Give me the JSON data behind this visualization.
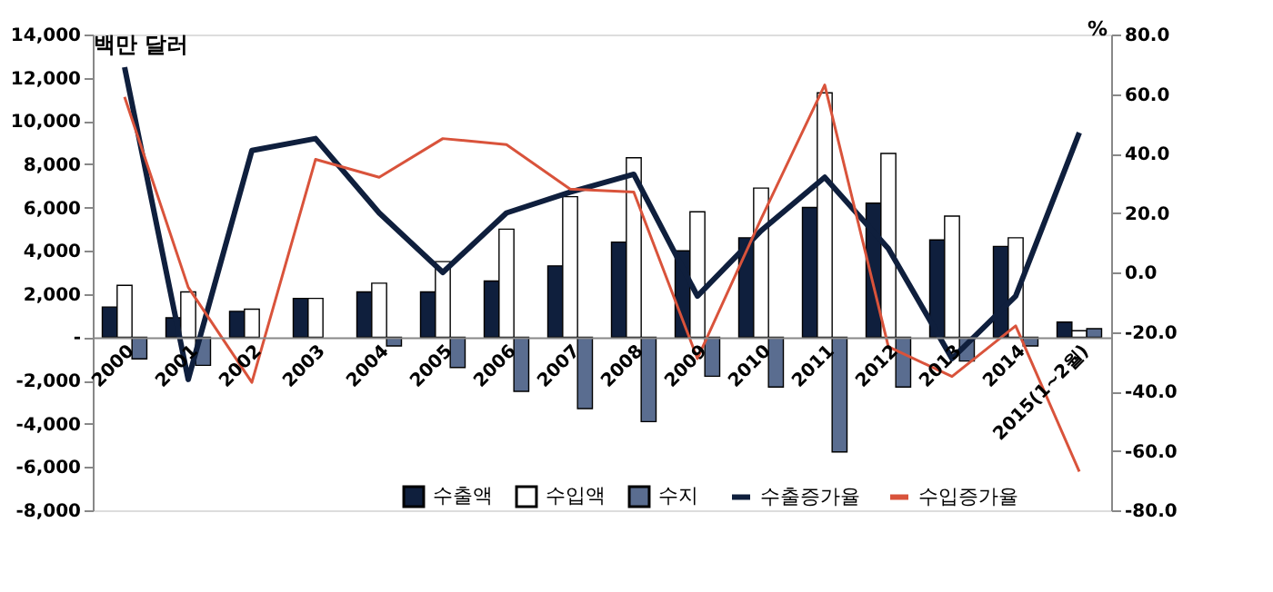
{
  "chart_data": {
    "type": "bar",
    "ylabel": "백만 달러",
    "y2label": "%",
    "categories": [
      "2000",
      "2001",
      "2002",
      "2003",
      "2004",
      "2005",
      "2006",
      "2007",
      "2008",
      "2009",
      "2010",
      "2011",
      "2012",
      "2013",
      "2014",
      "2015(1~2월)"
    ],
    "series": [
      {
        "name": "수출액",
        "color": "#0f1f3d",
        "values": [
          1400,
          900,
          1200,
          1800,
          2100,
          2100,
          2600,
          3300,
          4400,
          4000,
          4600,
          6000,
          6200,
          4500,
          4200,
          700
        ]
      },
      {
        "name": "수입액",
        "color": "#ffffff",
        "values": [
          2400,
          2100,
          1300,
          1800,
          2500,
          3500,
          5000,
          6500,
          8300,
          5800,
          6900,
          11300,
          8500,
          5600,
          4600,
          300
        ]
      },
      {
        "name": "수지",
        "color": "#5a6d90",
        "values": [
          -1000,
          -1300,
          null,
          null,
          -400,
          -1400,
          -2500,
          -3300,
          -3900,
          -1800,
          -2300,
          -5300,
          -2300,
          -1100,
          -400,
          400
        ]
      },
      {
        "name": "수출증가율",
        "type": "line",
        "axis": "y2",
        "color": "#0f1f3d",
        "values": [
          69,
          -36,
          41,
          45,
          20,
          0,
          20,
          27,
          33,
          -8,
          14,
          32,
          8,
          -29,
          -8,
          47
        ]
      },
      {
        "name": "수입증가율",
        "type": "line",
        "axis": "y2",
        "color": "#d9533b",
        "values": [
          59,
          -5,
          -37,
          38,
          32,
          45,
          43,
          28,
          27,
          -29,
          18,
          63,
          -25,
          -35,
          -18,
          -67
        ]
      }
    ],
    "ylim": [
      -8000,
      14000
    ],
    "yticks": [
      {
        "value": -8000,
        "label": "-8,000"
      },
      {
        "value": -6000,
        "label": "-6,000"
      },
      {
        "value": -4000,
        "label": "-4,000"
      },
      {
        "value": -2000,
        "label": "-2,000"
      },
      {
        "value": 0,
        "label": "-"
      },
      {
        "value": 2000,
        "label": "2,000"
      },
      {
        "value": 4000,
        "label": "4,000"
      },
      {
        "value": 6000,
        "label": "6,000"
      },
      {
        "value": 8000,
        "label": "8,000"
      },
      {
        "value": 10000,
        "label": "10,000"
      },
      {
        "value": 12000,
        "label": "12,000"
      },
      {
        "value": 14000,
        "label": "14,000"
      }
    ],
    "y2lim": [
      -80,
      80
    ],
    "y2ticks": [
      {
        "value": -80,
        "label": "-80.0"
      },
      {
        "value": -60,
        "label": "-60.0"
      },
      {
        "value": -40,
        "label": "-40.0"
      },
      {
        "value": -20,
        "label": "-20.0"
      },
      {
        "value": 0,
        "label": "0.0"
      },
      {
        "value": 20,
        "label": "20.0"
      },
      {
        "value": 40,
        "label": "40.0"
      },
      {
        "value": 60,
        "label": "60.0"
      },
      {
        "value": 80,
        "label": "80.0"
      }
    ],
    "grid": false,
    "legend": "bottom",
    "marker": "none",
    "line_style": "solid"
  }
}
